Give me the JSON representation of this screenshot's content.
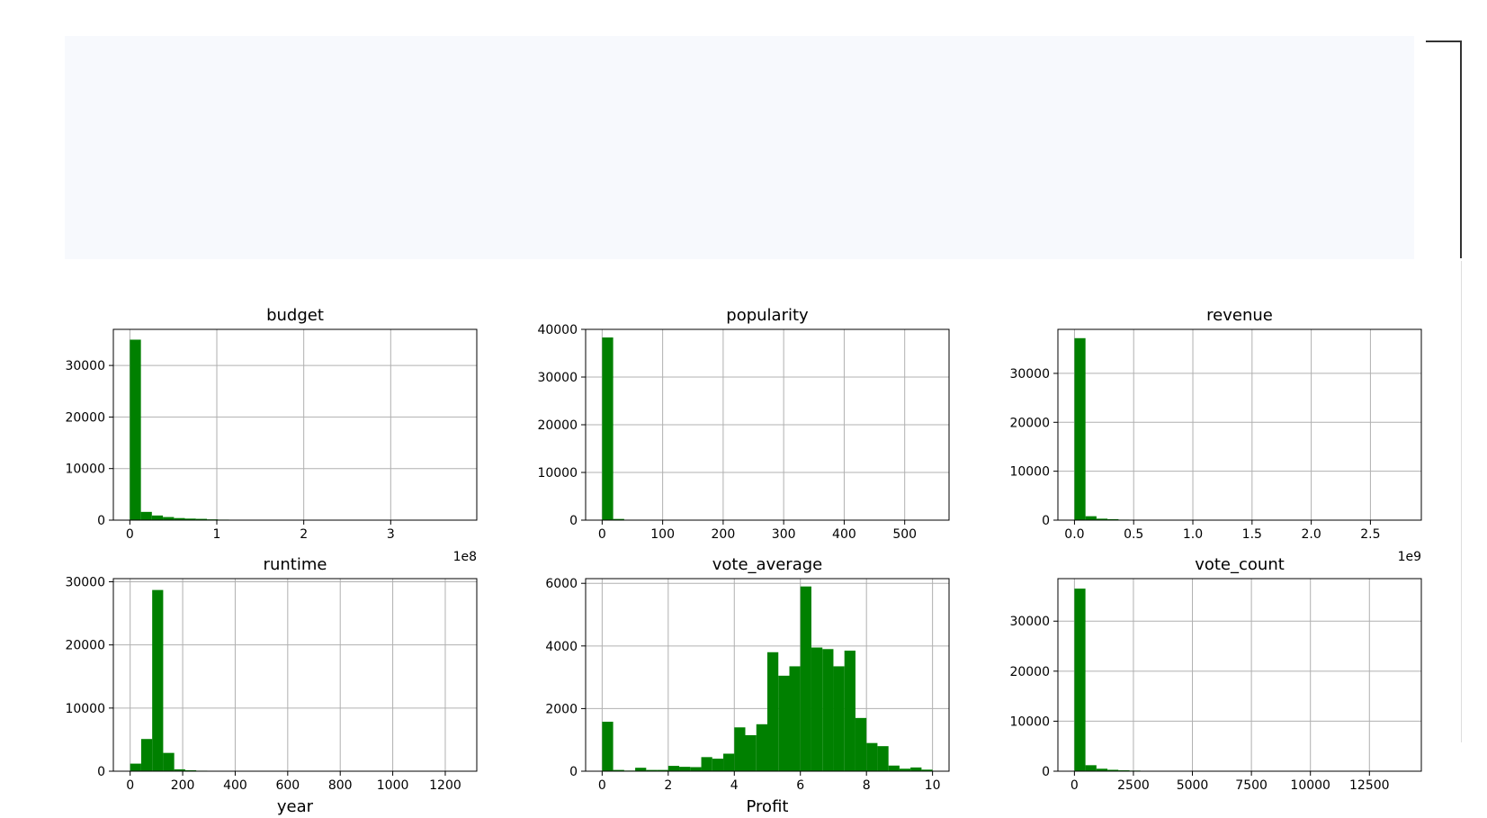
{
  "colors": {
    "bar": "#008000",
    "grid": "#b0b0b0",
    "axis": "#000000",
    "output_background": "#f7f9fd"
  },
  "chart_data": [
    {
      "type": "bar",
      "title": "budget",
      "xlabel": "",
      "offset_text": "1e8",
      "xlim": [
        -0.19,
        3.99
      ],
      "ylim": [
        0,
        37000
      ],
      "xticks": [
        0,
        1,
        2,
        3
      ],
      "xtick_labels": [
        "0",
        "1",
        "2",
        "3"
      ],
      "yticks": [
        0,
        10000,
        20000,
        30000
      ],
      "ytick_labels": [
        "0",
        "10000",
        "20000",
        "30000"
      ],
      "bin_edges": [
        0,
        0.127,
        0.253,
        0.38,
        0.507,
        0.633,
        0.76,
        0.887,
        1.013,
        1.14,
        1.267,
        1.393,
        1.52,
        1.647,
        1.773,
        1.9,
        2.027,
        2.153,
        2.28,
        2.407,
        2.533,
        2.66,
        2.787,
        2.913,
        3.04,
        3.167,
        3.293,
        3.42,
        3.547,
        3.673,
        3.8
      ],
      "counts": [
        35000,
        1600,
        900,
        600,
        400,
        300,
        250,
        150,
        100,
        60,
        40,
        30,
        20,
        15,
        10,
        8,
        5,
        4,
        3,
        2,
        2,
        1,
        1,
        1,
        1,
        0,
        0,
        0,
        0,
        1
      ]
    },
    {
      "type": "bar",
      "title": "popularity",
      "xlabel": "",
      "offset_text": "",
      "xlim": [
        -27.3,
        573.3
      ],
      "ylim": [
        0,
        40000
      ],
      "xticks": [
        0,
        100,
        200,
        300,
        400,
        500
      ],
      "xtick_labels": [
        "0",
        "100",
        "200",
        "300",
        "400",
        "500"
      ],
      "yticks": [
        0,
        10000,
        20000,
        30000,
        40000
      ],
      "ytick_labels": [
        "0",
        "10000",
        "20000",
        "30000",
        "40000"
      ],
      "bin_edges": [
        0,
        18.2,
        36.4,
        54.6,
        72.8,
        91,
        109.2,
        127.4,
        145.6,
        163.8,
        182,
        200.2,
        218.4,
        236.6,
        254.8,
        273,
        291.2,
        309.4,
        327.6,
        345.8,
        364,
        382.2,
        400.4,
        418.6,
        436.8,
        455,
        473.2,
        491.4,
        509.6,
        527.8,
        546
      ],
      "counts": [
        38300,
        250,
        40,
        15,
        8,
        5,
        3,
        2,
        1,
        1,
        1,
        0,
        1,
        0,
        0,
        0,
        1,
        0,
        0,
        0,
        0,
        0,
        0,
        0,
        0,
        0,
        0,
        0,
        0,
        1
      ]
    },
    {
      "type": "bar",
      "title": "revenue",
      "xlabel": "",
      "offset_text": "1e9",
      "xlim": [
        -0.14,
        2.93
      ],
      "ylim": [
        0,
        39000
      ],
      "xticks": [
        0,
        0.5,
        1,
        1.5,
        2,
        2.5
      ],
      "xtick_labels": [
        "0.0",
        "0.5",
        "1.0",
        "1.5",
        "2.0",
        "2.5"
      ],
      "yticks": [
        0,
        10000,
        20000,
        30000
      ],
      "ytick_labels": [
        "0",
        "10000",
        "20000",
        "30000"
      ],
      "bin_edges": [
        0,
        0.093,
        0.186,
        0.279,
        0.372,
        0.465,
        0.558,
        0.651,
        0.744,
        0.837,
        0.93,
        1.023,
        1.116,
        1.209,
        1.302,
        1.395,
        1.488,
        1.581,
        1.674,
        1.767,
        1.86,
        1.953,
        2.046,
        2.139,
        2.232,
        2.325,
        2.418,
        2.511,
        2.604,
        2.697,
        2.79
      ],
      "counts": [
        37200,
        800,
        300,
        200,
        100,
        60,
        40,
        25,
        15,
        10,
        8,
        6,
        4,
        3,
        2,
        2,
        1,
        1,
        1,
        1,
        1,
        0,
        0,
        1,
        0,
        0,
        0,
        0,
        0,
        1
      ]
    },
    {
      "type": "bar",
      "title": "runtime",
      "xlabel": "year",
      "offset_text": "",
      "xlim": [
        -64,
        1320
      ],
      "ylim": [
        0,
        30500
      ],
      "xticks": [
        0,
        200,
        400,
        600,
        800,
        1000,
        1200
      ],
      "xtick_labels": [
        "0",
        "200",
        "400",
        "600",
        "800",
        "1000",
        "1200"
      ],
      "yticks": [
        0,
        10000,
        20000,
        30000
      ],
      "ytick_labels": [
        "0",
        "10000",
        "20000",
        "30000"
      ],
      "bin_edges": [
        0,
        41.9,
        83.9,
        125.8,
        167.8,
        209.7,
        251.6,
        293.6,
        335.5,
        377.4,
        419.4,
        461.3,
        503.3,
        545.2,
        587.1,
        629.1,
        671,
        713,
        754.9,
        796.8,
        838.8,
        880.7,
        922.6,
        964.6,
        1006.5,
        1048.5,
        1090.4,
        1132.3,
        1174.3,
        1216.2,
        1258.2
      ],
      "counts": [
        1200,
        5100,
        28700,
        2900,
        300,
        150,
        80,
        60,
        40,
        20,
        5,
        3,
        2,
        1,
        1,
        1,
        0,
        0,
        0,
        0,
        0,
        0,
        0,
        0,
        0,
        0,
        0,
        0,
        0,
        1
      ]
    },
    {
      "type": "bar",
      "title": "vote_average",
      "xlabel": "Profit",
      "offset_text": "",
      "xlim": [
        -0.5,
        10.5
      ],
      "ylim": [
        0,
        6150
      ],
      "xticks": [
        0,
        2,
        4,
        6,
        8,
        10
      ],
      "xtick_labels": [
        "0",
        "2",
        "4",
        "6",
        "8",
        "10"
      ],
      "yticks": [
        0,
        2000,
        4000,
        6000
      ],
      "ytick_labels": [
        "0",
        "2000",
        "4000",
        "6000"
      ],
      "bin_edges": [
        0,
        0.333,
        0.667,
        1,
        1.333,
        1.667,
        2,
        2.333,
        2.667,
        3,
        3.333,
        3.667,
        4,
        4.333,
        4.667,
        5,
        5.333,
        5.667,
        6,
        6.333,
        6.667,
        7,
        7.333,
        7.667,
        8,
        8.333,
        8.667,
        9,
        9.333,
        9.667,
        10
      ],
      "counts": [
        1580,
        40,
        20,
        110,
        40,
        40,
        170,
        140,
        130,
        450,
        400,
        560,
        1400,
        1150,
        1500,
        3800,
        3050,
        3350,
        5900,
        3950,
        3900,
        3350,
        3850,
        1700,
        900,
        800,
        180,
        80,
        120,
        50
      ]
    },
    {
      "type": "bar",
      "title": "vote_count",
      "xlabel": "",
      "offset_text": "",
      "xlim": [
        -700,
        14700
      ],
      "ylim": [
        0,
        38500
      ],
      "xticks": [
        0,
        2500,
        5000,
        7500,
        10000,
        12500
      ],
      "xtick_labels": [
        "0",
        "2500",
        "5000",
        "7500",
        "10000",
        "12500"
      ],
      "yticks": [
        0,
        10000,
        20000,
        30000
      ],
      "ytick_labels": [
        "0",
        "10000",
        "20000",
        "30000"
      ],
      "bin_edges": [
        0,
        466.7,
        933.3,
        1400,
        1866.7,
        2333.3,
        2800,
        3266.7,
        3733.3,
        4200,
        4666.7,
        5133.3,
        5600,
        6066.7,
        6533.3,
        7000,
        7466.7,
        7933.3,
        8400,
        8866.7,
        9333.3,
        9800,
        10266.7,
        10733.3,
        11200,
        11666.7,
        12133.3,
        12600,
        13066.7,
        13533.3,
        14000
      ],
      "counts": [
        36500,
        1200,
        500,
        280,
        180,
        120,
        90,
        70,
        50,
        40,
        30,
        25,
        20,
        10,
        8,
        6,
        5,
        4,
        3,
        2,
        2,
        1,
        1,
        1,
        1,
        0,
        0,
        0,
        0,
        1
      ]
    }
  ]
}
